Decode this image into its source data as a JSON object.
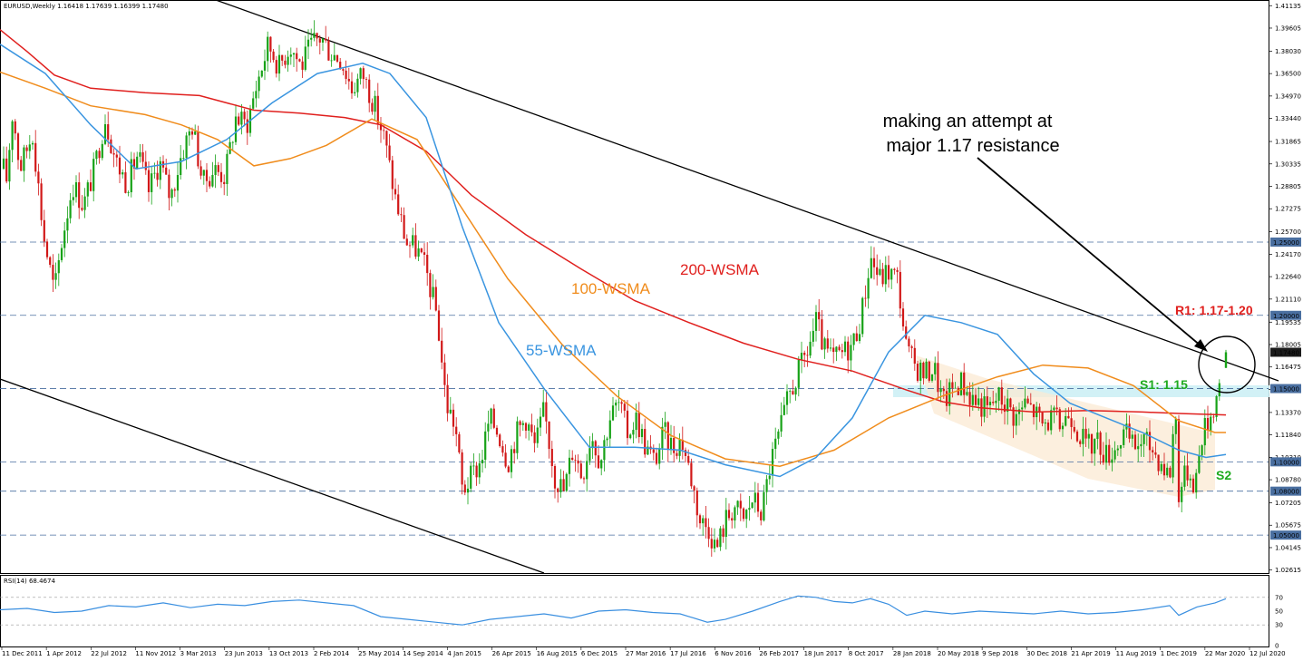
{
  "header": {
    "symbol_label": "EURUSD,Weekly  1.16418 1.17639 1.16399 1.17480"
  },
  "rsi_panel": {
    "label": "RSI(14) 68.4674"
  },
  "annotations": {
    "attempt_line1": "making an attempt at",
    "attempt_line2": "major 1.17 resistance",
    "wsma200": "200-WSMA",
    "wsma100": "100-WSMA",
    "wsma55": "55-WSMA",
    "r1": "R1: 1.17-1.20",
    "s1": "S1: 1.15",
    "s2": "S2"
  },
  "colors": {
    "bull": "#17a217",
    "bear": "#d11818",
    "wsma200": "#e0201e",
    "wsma100": "#f08c1c",
    "wsma55": "#3a95e0",
    "rsi": "#3a8fe0",
    "level_line": "#4a6fa0",
    "s1_zone": "#cdeff5",
    "channel_fill": "#fbe9d3"
  },
  "chart_data": {
    "type": "candlestick",
    "symbol": "EURUSD",
    "timeframe": "Weekly",
    "last": {
      "open": 1.16418,
      "high": 1.17639,
      "low": 1.16399,
      "close": 1.1748
    },
    "y_range": [
      1.0241,
      1.4146
    ],
    "y_ticks": [
      "1.41135",
      "1.39605",
      "1.38030",
      "1.36500",
      "1.34970",
      "1.33440",
      "1.31865",
      "1.30335",
      "1.28805",
      "1.27275",
      "1.25700",
      "1.24170",
      "1.22640",
      "1.21110",
      "1.19535",
      "1.18005",
      "1.16475",
      "1.14945",
      "1.13370",
      "1.11840",
      "1.10310",
      "1.08780",
      "1.07205",
      "1.05675",
      "1.04145",
      "1.02615"
    ],
    "price_tags": [
      {
        "label": "1.25000",
        "value": 1.25
      },
      {
        "label": "1.20000",
        "value": 1.2
      },
      {
        "label": "1.17480",
        "value": 1.1748,
        "dark": true
      },
      {
        "label": "1.15000",
        "value": 1.15
      },
      {
        "label": "1.10000",
        "value": 1.1
      },
      {
        "label": "1.08000",
        "value": 1.08
      },
      {
        "label": "1.05000",
        "value": 1.05
      }
    ],
    "levels": [
      1.25,
      1.2,
      1.15,
      1.1,
      1.08,
      1.05
    ],
    "x_labels": [
      "11 Dec 2011",
      "1 Apr 2012",
      "22 Jul 2012",
      "11 Nov 2012",
      "3 Mar 2013",
      "23 Jun 2013",
      "13 Oct 2013",
      "2 Feb 2014",
      "25 May 2014",
      "14 Sep 2014",
      "4 Jan 2015",
      "26 Apr 2015",
      "16 Aug 2015",
      "6 Dec 2015",
      "27 Mar 2016",
      "17 Jul 2016",
      "6 Nov 2016",
      "26 Feb 2017",
      "18 Jun 2017",
      "8 Oct 2017",
      "28 Jan 2018",
      "20 May 2018",
      "9 Sep 2018",
      "30 Dec 2018",
      "21 Apr 2019",
      "11 Aug 2019",
      "1 Dec 2019",
      "22 Mar 2020",
      "12 Jul 2020"
    ],
    "price_path": [
      [
        0,
        1.33
      ],
      [
        6,
        1.285
      ],
      [
        14,
        1.34
      ],
      [
        22,
        1.3
      ],
      [
        36,
        1.325
      ],
      [
        48,
        1.255
      ],
      [
        60,
        1.215
      ],
      [
        68,
        1.25
      ],
      [
        80,
        1.29
      ],
      [
        92,
        1.275
      ],
      [
        104,
        1.3
      ],
      [
        116,
        1.335
      ],
      [
        128,
        1.305
      ],
      [
        140,
        1.29
      ],
      [
        152,
        1.31
      ],
      [
        164,
        1.285
      ],
      [
        176,
        1.305
      ],
      [
        188,
        1.28
      ],
      [
        200,
        1.31
      ],
      [
        212,
        1.33
      ],
      [
        224,
        1.29
      ],
      [
        236,
        1.3
      ],
      [
        248,
        1.295
      ],
      [
        260,
        1.335
      ],
      [
        272,
        1.33
      ],
      [
        284,
        1.36
      ],
      [
        296,
        1.385
      ],
      [
        308,
        1.37
      ],
      [
        320,
        1.385
      ],
      [
        332,
        1.37
      ],
      [
        344,
        1.385
      ],
      [
        354,
        1.39
      ],
      [
        364,
        1.38
      ],
      [
        376,
        1.375
      ],
      [
        388,
        1.355
      ],
      [
        400,
        1.365
      ],
      [
        412,
        1.345
      ],
      [
        424,
        1.32
      ],
      [
        436,
        1.28
      ],
      [
        448,
        1.25
      ],
      [
        460,
        1.245
      ],
      [
        470,
        1.23
      ],
      [
        482,
        1.2
      ],
      [
        492,
        1.14
      ],
      [
        502,
        1.125
      ],
      [
        510,
        1.08
      ],
      [
        520,
        1.09
      ],
      [
        530,
        1.1
      ],
      [
        540,
        1.13
      ],
      [
        550,
        1.12
      ],
      [
        560,
        1.1
      ],
      [
        570,
        1.12
      ],
      [
        580,
        1.13
      ],
      [
        590,
        1.11
      ],
      [
        600,
        1.135
      ],
      [
        612,
        1.09
      ],
      [
        622,
        1.08
      ],
      [
        632,
        1.11
      ],
      [
        642,
        1.09
      ],
      [
        652,
        1.12
      ],
      [
        662,
        1.1
      ],
      [
        672,
        1.13
      ],
      [
        682,
        1.14
      ],
      [
        692,
        1.12
      ],
      [
        702,
        1.13
      ],
      [
        712,
        1.11
      ],
      [
        722,
        1.1
      ],
      [
        732,
        1.12
      ],
      [
        742,
        1.11
      ],
      [
        752,
        1.115
      ],
      [
        762,
        1.09
      ],
      [
        772,
        1.06
      ],
      [
        782,
        1.055
      ],
      [
        790,
        1.04
      ],
      [
        800,
        1.06
      ],
      [
        810,
        1.07
      ],
      [
        820,
        1.06
      ],
      [
        830,
        1.075
      ],
      [
        840,
        1.065
      ],
      [
        850,
        1.1
      ],
      [
        860,
        1.12
      ],
      [
        870,
        1.145
      ],
      [
        880,
        1.16
      ],
      [
        890,
        1.175
      ],
      [
        900,
        1.195
      ],
      [
        910,
        1.175
      ],
      [
        920,
        1.17
      ],
      [
        930,
        1.175
      ],
      [
        940,
        1.18
      ],
      [
        950,
        1.2
      ],
      [
        960,
        1.24
      ],
      [
        970,
        1.225
      ],
      [
        980,
        1.23
      ],
      [
        990,
        1.225
      ],
      [
        1000,
        1.175
      ],
      [
        1010,
        1.165
      ],
      [
        1020,
        1.16
      ],
      [
        1030,
        1.165
      ],
      [
        1040,
        1.14
      ],
      [
        1050,
        1.15
      ],
      [
        1060,
        1.155
      ],
      [
        1070,
        1.145
      ],
      [
        1080,
        1.14
      ],
      [
        1090,
        1.135
      ],
      [
        1100,
        1.145
      ],
      [
        1110,
        1.14
      ],
      [
        1120,
        1.13
      ],
      [
        1130,
        1.14
      ],
      [
        1140,
        1.135
      ],
      [
        1150,
        1.125
      ],
      [
        1160,
        1.13
      ],
      [
        1170,
        1.125
      ],
      [
        1180,
        1.135
      ],
      [
        1190,
        1.12
      ],
      [
        1200,
        1.11
      ],
      [
        1210,
        1.115
      ],
      [
        1220,
        1.105
      ],
      [
        1230,
        1.11
      ],
      [
        1240,
        1.12
      ],
      [
        1250,
        1.11
      ],
      [
        1260,
        1.115
      ],
      [
        1270,
        1.11
      ],
      [
        1280,
        1.1
      ],
      [
        1290,
        1.09
      ],
      [
        1296,
        1.14
      ],
      [
        1300,
        1.08
      ],
      [
        1310,
        1.095
      ],
      [
        1318,
        1.085
      ],
      [
        1326,
        1.12
      ],
      [
        1334,
        1.13
      ],
      [
        1342,
        1.145
      ],
      [
        1348,
        1.175
      ]
    ],
    "wsma200": [
      [
        0,
        1.395
      ],
      [
        30,
        1.38
      ],
      [
        60,
        1.364
      ],
      [
        100,
        1.355
      ],
      [
        160,
        1.352
      ],
      [
        220,
        1.35
      ],
      [
        280,
        1.34
      ],
      [
        330,
        1.338
      ],
      [
        380,
        1.335
      ],
      [
        420,
        1.33
      ],
      [
        470,
        1.312
      ],
      [
        520,
        1.282
      ],
      [
        580,
        1.255
      ],
      [
        640,
        1.232
      ],
      [
        700,
        1.21
      ],
      [
        760,
        1.195
      ],
      [
        820,
        1.181
      ],
      [
        880,
        1.17
      ],
      [
        940,
        1.162
      ],
      [
        1000,
        1.149
      ],
      [
        1040,
        1.141
      ],
      [
        1080,
        1.137
      ],
      [
        1140,
        1.134
      ],
      [
        1200,
        1.135
      ],
      [
        1260,
        1.134
      ],
      [
        1300,
        1.133
      ],
      [
        1352,
        1.132
      ]
    ],
    "wsma100": [
      [
        0,
        1.366
      ],
      [
        50,
        1.355
      ],
      [
        100,
        1.343
      ],
      [
        160,
        1.337
      ],
      [
        200,
        1.33
      ],
      [
        240,
        1.32
      ],
      [
        280,
        1.302
      ],
      [
        320,
        1.307
      ],
      [
        360,
        1.316
      ],
      [
        410,
        1.334
      ],
      [
        460,
        1.32
      ],
      [
        500,
        1.282
      ],
      [
        560,
        1.225
      ],
      [
        620,
        1.18
      ],
      [
        680,
        1.145
      ],
      [
        740,
        1.118
      ],
      [
        800,
        1.102
      ],
      [
        860,
        1.097
      ],
      [
        920,
        1.108
      ],
      [
        980,
        1.13
      ],
      [
        1040,
        1.145
      ],
      [
        1100,
        1.158
      ],
      [
        1150,
        1.166
      ],
      [
        1200,
        1.164
      ],
      [
        1250,
        1.152
      ],
      [
        1300,
        1.128
      ],
      [
        1340,
        1.12
      ],
      [
        1352,
        1.12
      ]
    ],
    "wsma55": [
      [
        0,
        1.385
      ],
      [
        50,
        1.365
      ],
      [
        100,
        1.33
      ],
      [
        150,
        1.3
      ],
      [
        200,
        1.305
      ],
      [
        250,
        1.32
      ],
      [
        300,
        1.345
      ],
      [
        350,
        1.365
      ],
      [
        400,
        1.372
      ],
      [
        430,
        1.365
      ],
      [
        470,
        1.335
      ],
      [
        510,
        1.26
      ],
      [
        550,
        1.195
      ],
      [
        600,
        1.15
      ],
      [
        650,
        1.11
      ],
      [
        700,
        1.11
      ],
      [
        750,
        1.108
      ],
      [
        800,
        1.098
      ],
      [
        860,
        1.09
      ],
      [
        900,
        1.103
      ],
      [
        940,
        1.13
      ],
      [
        980,
        1.175
      ],
      [
        1020,
        1.2
      ],
      [
        1060,
        1.195
      ],
      [
        1100,
        1.187
      ],
      [
        1140,
        1.16
      ],
      [
        1180,
        1.14
      ],
      [
        1220,
        1.13
      ],
      [
        1260,
        1.12
      ],
      [
        1300,
        1.108
      ],
      [
        1330,
        1.103
      ],
      [
        1352,
        1.105
      ]
    ],
    "rsi": {
      "range": [
        0,
        100
      ],
      "ticks": [
        70,
        50,
        30,
        0
      ],
      "tick_labels": [
        "70",
        "50",
        "30",
        "0"
      ],
      "values": [
        [
          0,
          52
        ],
        [
          30,
          54
        ],
        [
          60,
          48
        ],
        [
          90,
          50
        ],
        [
          120,
          58
        ],
        [
          150,
          56
        ],
        [
          180,
          62
        ],
        [
          210,
          55
        ],
        [
          240,
          60
        ],
        [
          270,
          58
        ],
        [
          300,
          64
        ],
        [
          330,
          66
        ],
        [
          360,
          62
        ],
        [
          390,
          58
        ],
        [
          420,
          42
        ],
        [
          450,
          38
        ],
        [
          480,
          34
        ],
        [
          510,
          30
        ],
        [
          540,
          38
        ],
        [
          570,
          42
        ],
        [
          600,
          46
        ],
        [
          630,
          40
        ],
        [
          660,
          50
        ],
        [
          690,
          52
        ],
        [
          720,
          48
        ],
        [
          750,
          46
        ],
        [
          780,
          34
        ],
        [
          800,
          38
        ],
        [
          830,
          50
        ],
        [
          860,
          64
        ],
        [
          880,
          72
        ],
        [
          900,
          70
        ],
        [
          920,
          64
        ],
        [
          940,
          62
        ],
        [
          960,
          68
        ],
        [
          980,
          60
        ],
        [
          1000,
          44
        ],
        [
          1020,
          50
        ],
        [
          1050,
          46
        ],
        [
          1080,
          50
        ],
        [
          1110,
          48
        ],
        [
          1140,
          46
        ],
        [
          1170,
          50
        ],
        [
          1200,
          46
        ],
        [
          1230,
          48
        ],
        [
          1260,
          52
        ],
        [
          1290,
          58
        ],
        [
          1300,
          44
        ],
        [
          1320,
          56
        ],
        [
          1340,
          62
        ],
        [
          1352,
          68
        ]
      ]
    }
  }
}
